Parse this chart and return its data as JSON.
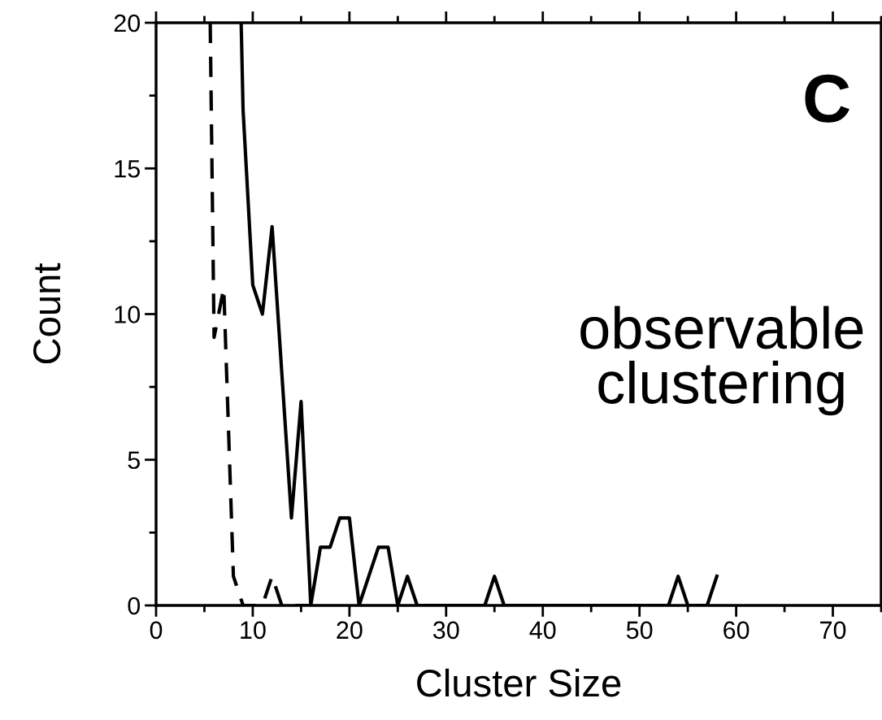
{
  "chart_data": {
    "type": "line",
    "xlabel": "Cluster Size",
    "ylabel": "Count",
    "annotations": [
      "C",
      "observable clustering"
    ],
    "xlim": [
      0,
      75
    ],
    "ylim": [
      0,
      20
    ],
    "xticks": [
      0,
      10,
      20,
      30,
      40,
      50,
      60,
      70
    ],
    "yticks": [
      0,
      5,
      10,
      15,
      20
    ],
    "grid": false,
    "legend": false,
    "marker": "none",
    "series": [
      {
        "color": "#000000",
        "line_style": "solid",
        "x": [
          8.8,
          9,
          10,
          11,
          12,
          13,
          14,
          15,
          16,
          17,
          18,
          19,
          20,
          21,
          22,
          23,
          24,
          25,
          26,
          27,
          28,
          29,
          30,
          31,
          32,
          33,
          34,
          35,
          36,
          37,
          38,
          39,
          40,
          41,
          42,
          43,
          44,
          45,
          46,
          47,
          48,
          49,
          50,
          51,
          52,
          53,
          54,
          55,
          56,
          57,
          58
        ],
        "values": [
          20,
          17,
          11,
          10,
          13,
          8,
          3,
          7,
          0,
          2,
          2,
          3,
          3,
          0,
          1,
          2,
          2,
          0,
          1,
          0,
          0,
          0,
          0,
          0,
          0,
          0,
          0,
          1,
          0,
          0,
          0,
          0,
          0,
          0,
          0,
          0,
          0,
          0,
          0,
          0,
          0,
          0,
          0,
          0,
          0,
          0,
          1,
          0,
          0,
          0,
          1
        ]
      },
      {
        "color": "#000000",
        "line_style": "dashed",
        "x": [
          5.6,
          6,
          7,
          8,
          9,
          10,
          11,
          12,
          13,
          14,
          15,
          16
        ],
        "values": [
          20,
          9.2,
          10.9,
          1,
          0,
          0,
          0,
          1,
          0,
          0,
          0,
          0
        ]
      }
    ]
  }
}
